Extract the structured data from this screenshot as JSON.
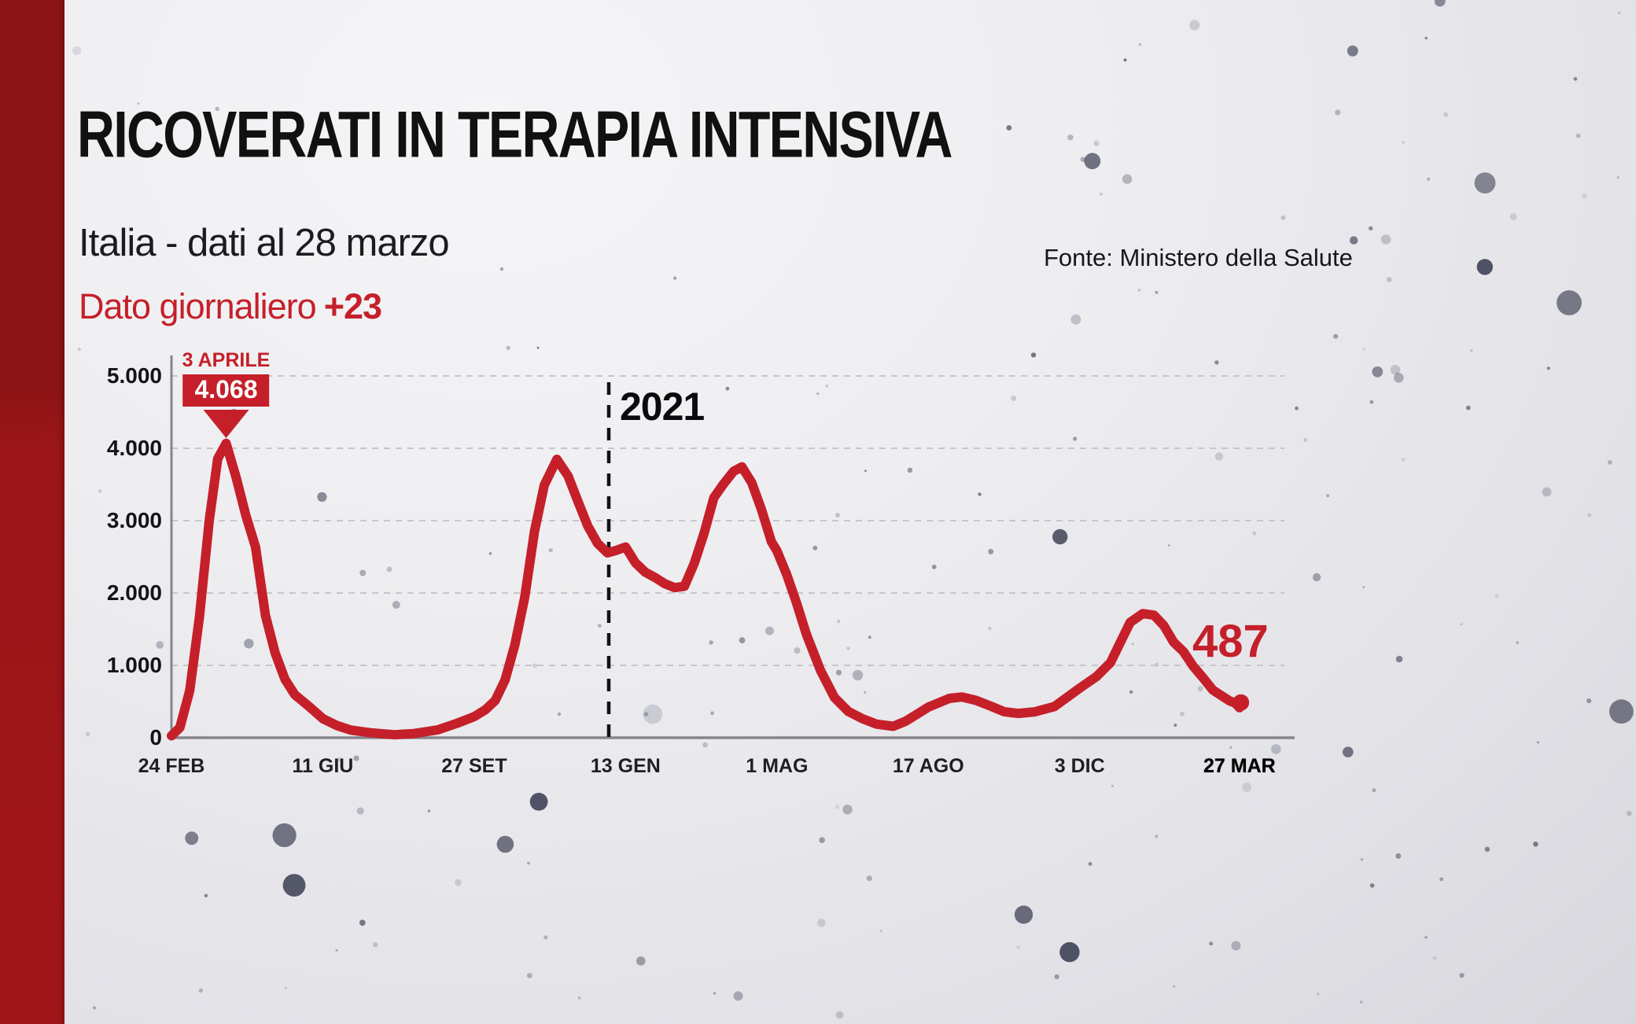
{
  "chart_data": {
    "type": "line",
    "title": "RICOVERATI IN TERAPIA INTENSIVA",
    "subtitle": "Italia - dati al 28 marzo",
    "source": "Fonte: Ministero della Salute",
    "daily_label": "Dato giornaliero",
    "daily_value": "+23",
    "ylabel": "",
    "xlabel": "",
    "ylim": [
      0,
      5000
    ],
    "grid": true,
    "legend": false,
    "colors": {
      "line_red": "#c5202a",
      "accent_red": "#c5202a",
      "grid_gray": "#c6c6cb",
      "axis_gray": "#85858c",
      "year_line_black": "#121215"
    },
    "y_ticks": [
      {
        "label": "0",
        "value": 0
      },
      {
        "label": "1.000",
        "value": 1000
      },
      {
        "label": "2.000",
        "value": 2000
      },
      {
        "label": "3.000",
        "value": 3000
      },
      {
        "label": "4.000",
        "value": 4000
      },
      {
        "label": "5.000",
        "value": 5000
      }
    ],
    "x_ticks": [
      {
        "label": "24 FEB",
        "day": 0
      },
      {
        "label": "11 GIU",
        "day": 108
      },
      {
        "label": "27 SET",
        "day": 216
      },
      {
        "label": "13 GEN",
        "day": 324
      },
      {
        "label": "1 MAG",
        "day": 432
      },
      {
        "label": "17 AGO",
        "day": 540
      },
      {
        "label": "3 DIC",
        "day": 648
      },
      {
        "label": "27 MAR",
        "day": 762,
        "bold": true
      }
    ],
    "annotations": {
      "peak_date": "3 APRILE",
      "peak_value": "4.068",
      "peak_day": 39,
      "year_label": "2021",
      "year_day": 312,
      "end_label": "487",
      "end_day": 763,
      "end_value": 487
    },
    "series": [
      {
        "name": "Ricoverati in terapia intensiva",
        "points": [
          [
            0,
            27
          ],
          [
            6,
            140
          ],
          [
            13,
            650
          ],
          [
            20,
            1672
          ],
          [
            27,
            3009
          ],
          [
            33,
            3856
          ],
          [
            39,
            4068
          ],
          [
            46,
            3605
          ],
          [
            53,
            3079
          ],
          [
            60,
            2635
          ],
          [
            67,
            1694
          ],
          [
            74,
            1168
          ],
          [
            81,
            808
          ],
          [
            88,
            595
          ],
          [
            98,
            435
          ],
          [
            108,
            263
          ],
          [
            118,
            168
          ],
          [
            128,
            105
          ],
          [
            142,
            68
          ],
          [
            159,
            41
          ],
          [
            173,
            58
          ],
          [
            190,
            109
          ],
          [
            204,
            201
          ],
          [
            216,
            291
          ],
          [
            224,
            387
          ],
          [
            231,
            514
          ],
          [
            238,
            797
          ],
          [
            245,
            1284
          ],
          [
            252,
            1939
          ],
          [
            259,
            2849
          ],
          [
            266,
            3492
          ],
          [
            275,
            3848
          ],
          [
            283,
            3616
          ],
          [
            290,
            3265
          ],
          [
            297,
            2926
          ],
          [
            304,
            2687
          ],
          [
            311,
            2555
          ],
          [
            317,
            2587
          ],
          [
            324,
            2636
          ],
          [
            331,
            2418
          ],
          [
            338,
            2288
          ],
          [
            345,
            2214
          ],
          [
            352,
            2128
          ],
          [
            359,
            2074
          ],
          [
            366,
            2094
          ],
          [
            373,
            2411
          ],
          [
            380,
            2827
          ],
          [
            387,
            3317
          ],
          [
            394,
            3510
          ],
          [
            401,
            3681
          ],
          [
            407,
            3743
          ],
          [
            414,
            3526
          ],
          [
            421,
            3151
          ],
          [
            428,
            2711
          ],
          [
            432,
            2583
          ],
          [
            439,
            2253
          ],
          [
            446,
            1860
          ],
          [
            453,
            1430
          ],
          [
            463,
            933
          ],
          [
            473,
            555
          ],
          [
            483,
            362
          ],
          [
            493,
            263
          ],
          [
            503,
            188
          ],
          [
            515,
            158
          ],
          [
            524,
            230
          ],
          [
            540,
            423
          ],
          [
            555,
            544
          ],
          [
            564,
            563
          ],
          [
            574,
            516
          ],
          [
            585,
            433
          ],
          [
            594,
            360
          ],
          [
            604,
            336
          ],
          [
            616,
            358
          ],
          [
            630,
            431
          ],
          [
            648,
            685
          ],
          [
            660,
            846
          ],
          [
            670,
            1038
          ],
          [
            677,
            1319
          ],
          [
            684,
            1595
          ],
          [
            693,
            1715
          ],
          [
            701,
            1694
          ],
          [
            708,
            1549
          ],
          [
            715,
            1322
          ],
          [
            722,
            1190
          ],
          [
            729,
            987
          ],
          [
            736,
            827
          ],
          [
            743,
            659
          ],
          [
            750,
            571
          ],
          [
            755,
            509
          ],
          [
            759,
            478
          ],
          [
            762,
            415
          ],
          [
            763,
            487
          ]
        ]
      }
    ]
  }
}
